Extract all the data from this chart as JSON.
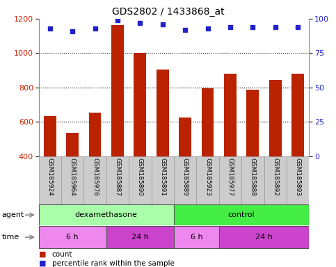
{
  "title": "GDS2802 / 1433868_at",
  "samples": [
    "GSM185924",
    "GSM185964",
    "GSM185976",
    "GSM185887",
    "GSM185890",
    "GSM185891",
    "GSM185889",
    "GSM185923",
    "GSM185977",
    "GSM185888",
    "GSM185892",
    "GSM185893"
  ],
  "counts": [
    635,
    535,
    655,
    1165,
    1000,
    905,
    625,
    795,
    880,
    785,
    845,
    880
  ],
  "percentile_ranks": [
    93,
    91,
    93,
    99,
    97,
    96,
    92,
    93,
    94,
    94,
    94,
    94
  ],
  "bar_color": "#BB2200",
  "dot_color": "#2222CC",
  "ylim_left": [
    400,
    1200
  ],
  "ylim_right": [
    0,
    100
  ],
  "yticks_left": [
    400,
    600,
    800,
    1000,
    1200
  ],
  "yticks_right": [
    0,
    25,
    50,
    75,
    100
  ],
  "grid_values": [
    600,
    800,
    1000
  ],
  "agent_groups": [
    {
      "label": "dexamethasone",
      "start": 0,
      "end": 6,
      "color": "#AAFFAA"
    },
    {
      "label": "control",
      "start": 6,
      "end": 12,
      "color": "#44EE44"
    }
  ],
  "time_groups": [
    {
      "label": "6 h",
      "start": 0,
      "end": 3,
      "color": "#EE88EE"
    },
    {
      "label": "24 h",
      "start": 3,
      "end": 6,
      "color": "#CC44CC"
    },
    {
      "label": "6 h",
      "start": 6,
      "end": 8,
      "color": "#EE88EE"
    },
    {
      "label": "24 h",
      "start": 8,
      "end": 12,
      "color": "#CC44CC"
    }
  ],
  "bg_color": "#FFFFFF",
  "tick_label_color_left": "#CC2200",
  "tick_label_color_right": "#2222CC",
  "label_bg": "#CCCCCC",
  "label_border": "#999999"
}
